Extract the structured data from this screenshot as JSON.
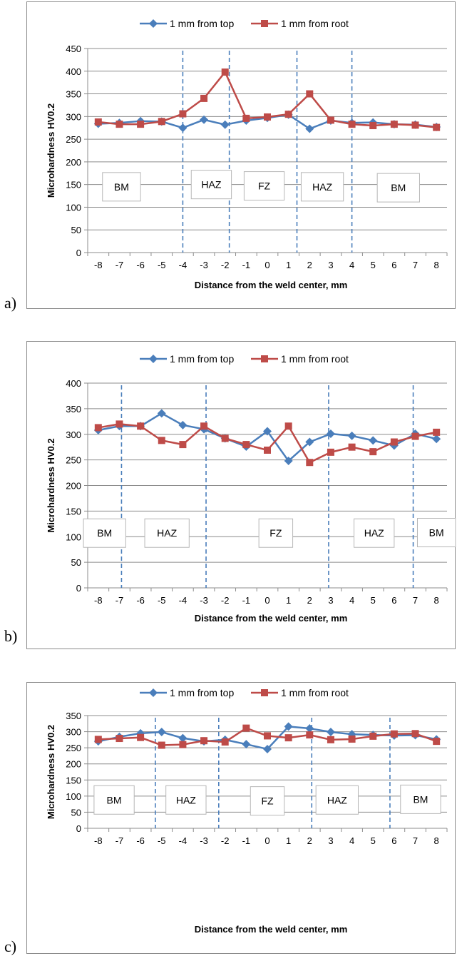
{
  "chart_data": [
    {
      "panel_label": "a)",
      "type": "line",
      "xlabel": "Distance from the weld center, mm",
      "ylabel": "Microhardness HV0.2",
      "ylim": [
        0,
        450
      ],
      "yticks": [
        0,
        50,
        100,
        150,
        200,
        250,
        300,
        350,
        400,
        450
      ],
      "x": [
        -8,
        -7,
        -6,
        -5,
        -4,
        -3,
        -2,
        -1,
        0,
        1,
        2,
        3,
        4,
        5,
        6,
        7,
        8
      ],
      "legend_position": "top",
      "grid": "horizontal",
      "series": [
        {
          "name": "1 mm from top",
          "color": "#4a7ebb",
          "marker": "diamond",
          "values": [
            284,
            286,
            290,
            289,
            275,
            293,
            282,
            291,
            297,
            304,
            273,
            291,
            286,
            287,
            283,
            282,
            277
          ]
        },
        {
          "name": "1 mm from root",
          "color": "#be4b48",
          "marker": "square",
          "values": [
            288,
            283,
            283,
            289,
            306,
            340,
            398,
            296,
            299,
            305,
            350,
            292,
            283,
            280,
            283,
            281,
            276
          ]
        }
      ],
      "boundaries": [
        -4,
        -1.8,
        1.4,
        4
      ],
      "zones": [
        {
          "label": "BM",
          "x_from": -7.8,
          "x_to": -6.0,
          "y": 145
        },
        {
          "label": "HAZ",
          "x_from": -3.6,
          "x_to": -1.7,
          "y": 150
        },
        {
          "label": "FZ",
          "x_from": -1.1,
          "x_to": 0.8,
          "y": 147
        },
        {
          "label": "HAZ",
          "x_from": 1.6,
          "x_to": 3.6,
          "y": 145
        },
        {
          "label": "BM",
          "x_from": 5.2,
          "x_to": 7.2,
          "y": 143
        }
      ]
    },
    {
      "panel_label": "b)",
      "type": "line",
      "xlabel": "Distance from the weld center, mm",
      "ylabel": "Microhardness HV0.2",
      "ylim": [
        0,
        400
      ],
      "yticks": [
        0,
        50,
        100,
        150,
        200,
        250,
        300,
        350,
        400
      ],
      "x": [
        -8,
        -7,
        -6,
        -5,
        -4,
        -3,
        -2,
        -1,
        0,
        1,
        2,
        3,
        4,
        5,
        6,
        7,
        8
      ],
      "legend_position": "top",
      "grid": "horizontal",
      "series": [
        {
          "name": "1 mm from top",
          "color": "#4a7ebb",
          "marker": "diamond",
          "values": [
            308,
            316,
            316,
            341,
            318,
            310,
            292,
            276,
            306,
            248,
            285,
            301,
            297,
            288,
            278,
            301,
            291
          ]
        },
        {
          "name": "1 mm from root",
          "color": "#be4b48",
          "marker": "square",
          "values": [
            313,
            320,
            316,
            288,
            280,
            316,
            292,
            280,
            269,
            316,
            245,
            265,
            275,
            266,
            285,
            296,
            304
          ]
        }
      ],
      "boundaries": [
        -6.9,
        -2.9,
        2.9,
        6.9
      ],
      "zones": [
        {
          "label": "BM",
          "x_from": -8.7,
          "x_to": -6.7,
          "y": 107
        },
        {
          "label": "HAZ",
          "x_from": -5.8,
          "x_to": -3.7,
          "y": 107
        },
        {
          "label": "FZ",
          "x_from": -0.4,
          "x_to": 1.2,
          "y": 107
        },
        {
          "label": "HAZ",
          "x_from": 4.1,
          "x_to": 6.0,
          "y": 107
        },
        {
          "label": "BM",
          "x_from": 7.1,
          "x_to": 8.9,
          "y": 108
        }
      ]
    },
    {
      "panel_label": "c)",
      "type": "line",
      "xlabel": "Distance from the weld center, mm",
      "ylabel": "Microhardness HV0.2",
      "ylim": [
        0,
        350
      ],
      "yticks": [
        0,
        50,
        100,
        150,
        200,
        250,
        300,
        350
      ],
      "x": [
        -8,
        -7,
        -6,
        -5,
        -4,
        -3,
        -2,
        -1,
        0,
        1,
        2,
        3,
        4,
        5,
        6,
        7,
        8
      ],
      "legend_position": "top",
      "grid": "horizontal",
      "series": [
        {
          "name": "1 mm from top",
          "color": "#4a7ebb",
          "marker": "diamond",
          "values": [
            270,
            284,
            295,
            299,
            280,
            270,
            275,
            261,
            246,
            316,
            310,
            299,
            292,
            290,
            288,
            289,
            276
          ]
        },
        {
          "name": "1 mm from root",
          "color": "#be4b48",
          "marker": "square",
          "values": [
            276,
            279,
            282,
            258,
            260,
            272,
            268,
            311,
            287,
            281,
            290,
            275,
            277,
            286,
            293,
            294,
            270
          ]
        }
      ],
      "boundaries": [
        -5.3,
        -2.3,
        2.1,
        5.8
      ],
      "zones": [
        {
          "label": "BM",
          "x_from": -8.2,
          "x_to": -6.3,
          "y": 88
        },
        {
          "label": "HAZ",
          "x_from": -4.8,
          "x_to": -2.9,
          "y": 88
        },
        {
          "label": "FZ",
          "x_from": -0.8,
          "x_to": 0.8,
          "y": 85
        },
        {
          "label": "HAZ",
          "x_from": 2.3,
          "x_to": 4.3,
          "y": 88
        },
        {
          "label": "BM",
          "x_from": 6.3,
          "x_to": 8.2,
          "y": 90
        }
      ]
    }
  ]
}
